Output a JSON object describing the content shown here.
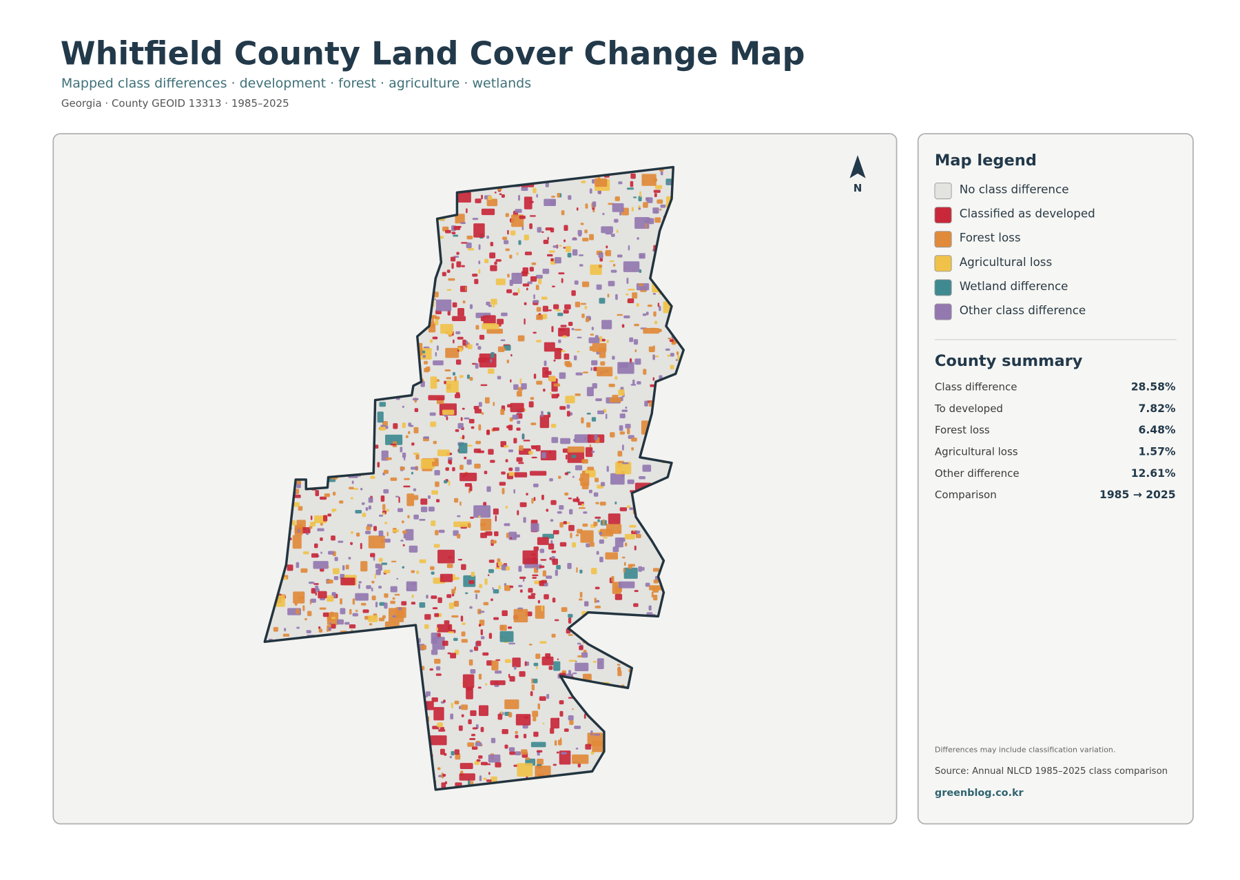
{
  "header": {
    "title": "Whitfield County Land Cover Change Map",
    "subtitle": "Mapped class differences · development · forest · agriculture · wetlands",
    "meta": "Georgia · County GEOID 13313 · 1985–2025"
  },
  "map": {
    "north": "N"
  },
  "legend": {
    "title": "Map legend",
    "items": [
      {
        "label": "No class difference",
        "color": "#e3e3e0"
      },
      {
        "label": "Classified as developed",
        "color": "#c8283a"
      },
      {
        "label": "Forest loss",
        "color": "#e08a3a"
      },
      {
        "label": "Agricultural loss",
        "color": "#f0c24a"
      },
      {
        "label": "Wetland difference",
        "color": "#3f8a90"
      },
      {
        "label": "Other class difference",
        "color": "#9478b0"
      }
    ]
  },
  "summary": {
    "title": "County summary",
    "rows": [
      {
        "label": "Class difference",
        "value": "28.58%"
      },
      {
        "label": "To developed",
        "value": "7.82%"
      },
      {
        "label": "Forest loss",
        "value": "6.48%"
      },
      {
        "label": "Agricultural loss",
        "value": "1.57%"
      },
      {
        "label": "Other difference",
        "value": "12.61%"
      },
      {
        "label": "Comparison",
        "value": "1985 → 2025"
      }
    ]
  },
  "footer": {
    "note": "Differences may include classification variation.",
    "source": "Source: Annual NLCD 1985–2025 class comparison",
    "site": "greenblog.co.kr"
  }
}
